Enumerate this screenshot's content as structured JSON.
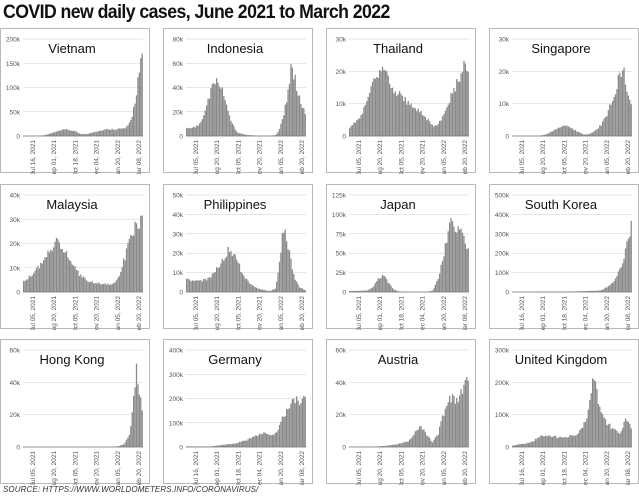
{
  "title": "COVID new daily cases, June 2021 to March 2022",
  "source": "SOURCE: HTTPS://WWW.WORLDOMETERS.INFO/CORONAVIRUS/",
  "colors": {
    "bar": "#8a8a8a",
    "axis": "#777777",
    "tick_text": "#555555",
    "grid": "#cccccc",
    "border": "#b9b9b9"
  },
  "chart_data": [
    {
      "type": "bar",
      "country": "Vietnam",
      "ylim": [
        0,
        200000
      ],
      "yticks": [
        {
          "v": 0,
          "label": "0"
        },
        {
          "v": 50000,
          "label": "50k"
        },
        {
          "v": 100000,
          "label": "100k"
        },
        {
          "v": 150000,
          "label": "150k"
        },
        {
          "v": 200000,
          "label": "200k"
        }
      ],
      "xticks": [
        "Jul 16, 2021",
        "Sep 01, 2021",
        "Oct 18, 2021",
        "Dec 04, 2021",
        "Jan 20, 2022",
        "Mar 08, 2022"
      ],
      "keypoints": [
        [
          0,
          0
        ],
        [
          0.05,
          0
        ],
        [
          0.1,
          200
        ],
        [
          0.18,
          2000
        ],
        [
          0.28,
          10000
        ],
        [
          0.35,
          15000
        ],
        [
          0.42,
          12000
        ],
        [
          0.48,
          5000
        ],
        [
          0.53,
          4000
        ],
        [
          0.6,
          10000
        ],
        [
          0.7,
          15000
        ],
        [
          0.78,
          16000
        ],
        [
          0.85,
          17000
        ],
        [
          0.88,
          22000
        ],
        [
          0.91,
          40000
        ],
        [
          0.94,
          80000
        ],
        [
          0.97,
          140000
        ],
        [
          1,
          180000
        ]
      ]
    },
    {
      "type": "bar",
      "country": "Indonesia",
      "ylim": [
        0,
        80000
      ],
      "yticks": [
        {
          "v": 0,
          "label": "0"
        },
        {
          "v": 20000,
          "label": "20k"
        },
        {
          "v": 40000,
          "label": "40k"
        },
        {
          "v": 60000,
          "label": "60k"
        },
        {
          "v": 80000,
          "label": "80k"
        }
      ],
      "xticks": [
        "Jul 05, 2021",
        "Aug 20, 2021",
        "Oct 05, 2021",
        "Nov 20, 2021",
        "Jan 05, 2022",
        "Feb 20, 2022"
      ],
      "keypoints": [
        [
          0,
          7000
        ],
        [
          0.1,
          9000
        ],
        [
          0.15,
          20000
        ],
        [
          0.2,
          40000
        ],
        [
          0.25,
          56000
        ],
        [
          0.28,
          48000
        ],
        [
          0.33,
          30000
        ],
        [
          0.38,
          12000
        ],
        [
          0.43,
          3000
        ],
        [
          0.5,
          1000
        ],
        [
          0.6,
          400
        ],
        [
          0.7,
          300
        ],
        [
          0.75,
          800
        ],
        [
          0.78,
          5000
        ],
        [
          0.82,
          20000
        ],
        [
          0.86,
          45000
        ],
        [
          0.88,
          63000
        ],
        [
          0.92,
          50000
        ],
        [
          0.96,
          30000
        ],
        [
          1,
          20000
        ]
      ]
    },
    {
      "type": "bar",
      "country": "Thailand",
      "ylim": [
        0,
        30000
      ],
      "yticks": [
        {
          "v": 0,
          "label": "0"
        },
        {
          "v": 10000,
          "label": "10k"
        },
        {
          "v": 20000,
          "label": "20k"
        },
        {
          "v": 30000,
          "label": "30k"
        }
      ],
      "xticks": [
        "Jul 05, 2021",
        "Aug 20, 2021",
        "Oct 05, 2021",
        "Nov 20, 2021",
        "Jan 05, 2022",
        "Feb 20, 2022"
      ],
      "keypoints": [
        [
          0,
          3000
        ],
        [
          0.08,
          6000
        ],
        [
          0.15,
          12000
        ],
        [
          0.22,
          20000
        ],
        [
          0.28,
          22500
        ],
        [
          0.33,
          19000
        ],
        [
          0.38,
          16000
        ],
        [
          0.45,
          13000
        ],
        [
          0.55,
          10000
        ],
        [
          0.6,
          8000
        ],
        [
          0.65,
          6000
        ],
        [
          0.7,
          3500
        ],
        [
          0.75,
          4000
        ],
        [
          0.8,
          8000
        ],
        [
          0.85,
          13000
        ],
        [
          0.9,
          18000
        ],
        [
          0.95,
          23000
        ],
        [
          1,
          24000
        ]
      ]
    },
    {
      "type": "bar",
      "country": "Singapore",
      "ylim": [
        0,
        30000
      ],
      "yticks": [
        {
          "v": 0,
          "label": "0"
        },
        {
          "v": 10000,
          "label": "10k"
        },
        {
          "v": 20000,
          "label": "20k"
        },
        {
          "v": 30000,
          "label": "30k"
        }
      ],
      "xticks": [
        "Jul 05, 2021",
        "Aug 20, 2021",
        "Oct 05, 2021",
        "Nov 20, 2021",
        "Jan 05, 2022",
        "Feb 20, 2022"
      ],
      "keypoints": [
        [
          0,
          0
        ],
        [
          0.2,
          0
        ],
        [
          0.25,
          200
        ],
        [
          0.3,
          800
        ],
        [
          0.35,
          2000
        ],
        [
          0.4,
          3000
        ],
        [
          0.45,
          3500
        ],
        [
          0.5,
          2500
        ],
        [
          0.55,
          1500
        ],
        [
          0.6,
          500
        ],
        [
          0.65,
          700
        ],
        [
          0.7,
          2000
        ],
        [
          0.75,
          4000
        ],
        [
          0.8,
          8000
        ],
        [
          0.85,
          14000
        ],
        [
          0.9,
          20000
        ],
        [
          0.93,
          25000
        ],
        [
          0.97,
          15000
        ],
        [
          1,
          12000
        ]
      ]
    },
    {
      "type": "bar",
      "country": "Malaysia",
      "ylim": [
        0,
        40000
      ],
      "yticks": [
        {
          "v": 0,
          "label": "0"
        },
        {
          "v": 10000,
          "label": "10k"
        },
        {
          "v": 20000,
          "label": "20k"
        },
        {
          "v": 30000,
          "label": "30k"
        },
        {
          "v": 40000,
          "label": "40k"
        }
      ],
      "xticks": [
        "Jul 05, 2021",
        "Aug 20, 2021",
        "Oct 05, 2021",
        "Nov 20, 2021",
        "Jan 05, 2022",
        "Feb 20, 2022"
      ],
      "keypoints": [
        [
          0,
          5000
        ],
        [
          0.08,
          8000
        ],
        [
          0.15,
          13000
        ],
        [
          0.22,
          20000
        ],
        [
          0.28,
          23000
        ],
        [
          0.33,
          20000
        ],
        [
          0.4,
          14000
        ],
        [
          0.47,
          8000
        ],
        [
          0.55,
          5000
        ],
        [
          0.62,
          4000
        ],
        [
          0.7,
          3500
        ],
        [
          0.75,
          3500
        ],
        [
          0.8,
          7000
        ],
        [
          0.85,
          15000
        ],
        [
          0.9,
          25000
        ],
        [
          0.95,
          32000
        ],
        [
          1,
          33000
        ]
      ]
    },
    {
      "type": "bar",
      "country": "Philippines",
      "ylim": [
        0,
        50000
      ],
      "yticks": [
        {
          "v": 0,
          "label": "0"
        },
        {
          "v": 10000,
          "label": "10k"
        },
        {
          "v": 20000,
          "label": "20k"
        },
        {
          "v": 30000,
          "label": "30k"
        },
        {
          "v": 40000,
          "label": "40k"
        },
        {
          "v": 50000,
          "label": "50k"
        }
      ],
      "xticks": [
        "Jul 05, 2021",
        "Aug 20, 2021",
        "Oct 05, 2021",
        "Nov 20, 2021",
        "Jan 05, 2022",
        "Feb 20, 2022"
      ],
      "keypoints": [
        [
          0,
          7000
        ],
        [
          0.1,
          6000
        ],
        [
          0.2,
          8000
        ],
        [
          0.27,
          15000
        ],
        [
          0.33,
          22000
        ],
        [
          0.37,
          25000
        ],
        [
          0.42,
          18000
        ],
        [
          0.48,
          10000
        ],
        [
          0.53,
          5000
        ],
        [
          0.6,
          2000
        ],
        [
          0.7,
          500
        ],
        [
          0.75,
          2000
        ],
        [
          0.78,
          15000
        ],
        [
          0.81,
          35000
        ],
        [
          0.83,
          38000
        ],
        [
          0.86,
          25000
        ],
        [
          0.9,
          10000
        ],
        [
          0.95,
          3000
        ],
        [
          1,
          1000
        ]
      ]
    },
    {
      "type": "bar",
      "country": "Japan",
      "ylim": [
        0,
        125000
      ],
      "yticks": [
        {
          "v": 0,
          "label": "0"
        },
        {
          "v": 25000,
          "label": "25k"
        },
        {
          "v": 50000,
          "label": "50k"
        },
        {
          "v": 75000,
          "label": "75k"
        },
        {
          "v": 100000,
          "label": "100k"
        },
        {
          "v": 125000,
          "label": "125k"
        }
      ],
      "xticks": [
        "Jul 05, 2021",
        "Sep 01, 2021",
        "Oct 18, 2021",
        "Dec 04, 2021",
        "Jan 20, 2022",
        "Mar 08, 2022"
      ],
      "keypoints": [
        [
          0,
          1500
        ],
        [
          0.15,
          2000
        ],
        [
          0.2,
          8000
        ],
        [
          0.25,
          20000
        ],
        [
          0.28,
          25000
        ],
        [
          0.32,
          15000
        ],
        [
          0.37,
          4000
        ],
        [
          0.42,
          500
        ],
        [
          0.55,
          200
        ],
        [
          0.65,
          300
        ],
        [
          0.7,
          2000
        ],
        [
          0.75,
          20000
        ],
        [
          0.8,
          60000
        ],
        [
          0.85,
          100000
        ],
        [
          0.9,
          95000
        ],
        [
          0.95,
          80000
        ],
        [
          1,
          65000
        ]
      ]
    },
    {
      "type": "bar",
      "country": "South Korea",
      "ylim": [
        0,
        500000
      ],
      "yticks": [
        {
          "v": 0,
          "label": "0"
        },
        {
          "v": 100000,
          "label": "100k"
        },
        {
          "v": 200000,
          "label": "200k"
        },
        {
          "v": 300000,
          "label": "300k"
        },
        {
          "v": 400000,
          "label": "400k"
        },
        {
          "v": 500000,
          "label": "500k"
        }
      ],
      "xticks": [
        "Jul 16, 2021",
        "Sep 01, 2021",
        "Oct 18, 2021",
        "Dec 04, 2021",
        "Jan 20, 2022",
        "Mar 08, 2022"
      ],
      "keypoints": [
        [
          0,
          500
        ],
        [
          0.3,
          1500
        ],
        [
          0.5,
          2500
        ],
        [
          0.6,
          5000
        ],
        [
          0.7,
          7000
        ],
        [
          0.75,
          10000
        ],
        [
          0.8,
          30000
        ],
        [
          0.85,
          60000
        ],
        [
          0.9,
          120000
        ],
        [
          0.95,
          230000
        ],
        [
          1,
          380000
        ]
      ]
    },
    {
      "type": "bar",
      "country": "Hong Kong",
      "ylim": [
        0,
        60000
      ],
      "yticks": [
        {
          "v": 0,
          "label": "0"
        },
        {
          "v": 20000,
          "label": "20k"
        },
        {
          "v": 40000,
          "label": "40k"
        },
        {
          "v": 60000,
          "label": "60k"
        }
      ],
      "xticks": [
        "Jul 05, 2021",
        "Aug 20, 2021",
        "Oct 05, 2021",
        "Nov 20, 2021",
        "Jan 05, 2022",
        "Feb 20, 2022"
      ],
      "keypoints": [
        [
          0,
          0
        ],
        [
          0.7,
          0
        ],
        [
          0.75,
          100
        ],
        [
          0.8,
          500
        ],
        [
          0.85,
          2000
        ],
        [
          0.9,
          10000
        ],
        [
          0.93,
          35000
        ],
        [
          0.95,
          56000
        ],
        [
          0.97,
          40000
        ],
        [
          1,
          25000
        ]
      ]
    },
    {
      "type": "bar",
      "country": "Germany",
      "ylim": [
        0,
        400000
      ],
      "yticks": [
        {
          "v": 0,
          "label": "0"
        },
        {
          "v": 100000,
          "label": "100k"
        },
        {
          "v": 200000,
          "label": "200k"
        },
        {
          "v": 300000,
          "label": "300k"
        },
        {
          "v": 400000,
          "label": "400k"
        }
      ],
      "xticks": [
        "Jul 16, 2021",
        "Sep 01, 2021",
        "Oct 18, 2021",
        "Dec 04, 2021",
        "Jan 20, 2022",
        "Mar 08, 2022"
      ],
      "keypoints": [
        [
          0,
          3000
        ],
        [
          0.2,
          2000
        ],
        [
          0.3,
          10000
        ],
        [
          0.4,
          15000
        ],
        [
          0.5,
          30000
        ],
        [
          0.6,
          55000
        ],
        [
          0.65,
          65000
        ],
        [
          0.7,
          50000
        ],
        [
          0.75,
          60000
        ],
        [
          0.8,
          120000
        ],
        [
          0.85,
          180000
        ],
        [
          0.9,
          220000
        ],
        [
          0.95,
          200000
        ],
        [
          1,
          250000
        ]
      ]
    },
    {
      "type": "bar",
      "country": "Austria",
      "ylim": [
        0,
        60000
      ],
      "yticks": [
        {
          "v": 0,
          "label": "0"
        },
        {
          "v": 20000,
          "label": "20k"
        },
        {
          "v": 40000,
          "label": "40k"
        },
        {
          "v": 60000,
          "label": "60k"
        }
      ],
      "xticks": [
        "Jul 05, 2021",
        "Aug 20, 2021",
        "Oct 05, 2021",
        "Nov 20, 2021",
        "Jan 05, 2022",
        "Feb 20, 2022"
      ],
      "keypoints": [
        [
          0,
          100
        ],
        [
          0.2,
          200
        ],
        [
          0.3,
          800
        ],
        [
          0.4,
          2000
        ],
        [
          0.5,
          4000
        ],
        [
          0.55,
          10000
        ],
        [
          0.6,
          15000
        ],
        [
          0.65,
          9000
        ],
        [
          0.7,
          3000
        ],
        [
          0.75,
          10000
        ],
        [
          0.8,
          25000
        ],
        [
          0.85,
          35000
        ],
        [
          0.9,
          30000
        ],
        [
          0.95,
          40000
        ],
        [
          1,
          45000
        ]
      ]
    },
    {
      "type": "bar",
      "country": "United Kingdom",
      "ylim": [
        0,
        300000
      ],
      "yticks": [
        {
          "v": 0,
          "label": "0"
        },
        {
          "v": 100000,
          "label": "100k"
        },
        {
          "v": 200000,
          "label": "200k"
        },
        {
          "v": 300000,
          "label": "300k"
        }
      ],
      "xticks": [
        "Jul 16, 2021",
        "Sep 01, 2021",
        "Oct 18, 2021",
        "Dec 04, 2021",
        "Jan 20, 2022",
        "Mar 08, 2022"
      ],
      "keypoints": [
        [
          0,
          5000
        ],
        [
          0.15,
          15000
        ],
        [
          0.25,
          40000
        ],
        [
          0.35,
          35000
        ],
        [
          0.45,
          35000
        ],
        [
          0.55,
          45000
        ],
        [
          0.62,
          90000
        ],
        [
          0.66,
          180000
        ],
        [
          0.68,
          250000
        ],
        [
          0.72,
          170000
        ],
        [
          0.78,
          90000
        ],
        [
          0.85,
          60000
        ],
        [
          0.9,
          45000
        ],
        [
          0.95,
          90000
        ],
        [
          1,
          70000
        ]
      ]
    }
  ]
}
